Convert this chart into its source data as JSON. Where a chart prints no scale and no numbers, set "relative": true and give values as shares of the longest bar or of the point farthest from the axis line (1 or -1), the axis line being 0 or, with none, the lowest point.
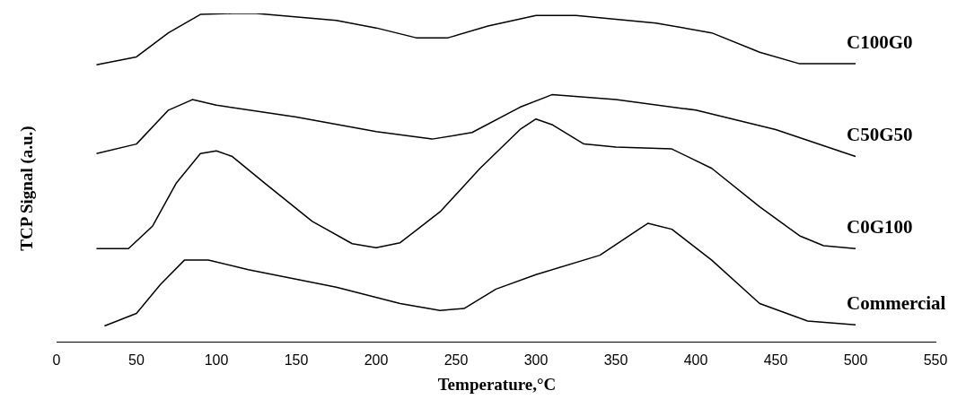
{
  "chart_data": {
    "type": "line",
    "relative": true,
    "xlabel": "Temperature,°C",
    "ylabel": "TCP Signal (a.u.)",
    "xlim": [
      0,
      550
    ],
    "xticks": [
      0,
      50,
      100,
      150,
      200,
      250,
      300,
      350,
      400,
      450,
      500,
      550
    ],
    "grid": false,
    "legend": false,
    "marker": "none",
    "line_style": "solid",
    "series": [
      {
        "name": "C100G0",
        "color": "#000000",
        "x": [
          25,
          50,
          70,
          90,
          110,
          125,
          175,
          200,
          225,
          245,
          270,
          300,
          325,
          375,
          410,
          440,
          465,
          500
        ],
        "values": [
          0.844,
          0.868,
          0.941,
          0.997,
          1.0,
          1.0,
          0.979,
          0.956,
          0.926,
          0.926,
          0.962,
          0.994,
          0.994,
          0.971,
          0.941,
          0.882,
          0.847,
          0.847
        ]
      },
      {
        "name": "C50G50",
        "color": "#000000",
        "x": [
          25,
          50,
          70,
          85,
          100,
          150,
          200,
          235,
          260,
          290,
          310,
          350,
          400,
          450,
          500
        ],
        "values": [
          0.574,
          0.603,
          0.706,
          0.738,
          0.721,
          0.685,
          0.641,
          0.618,
          0.638,
          0.715,
          0.753,
          0.738,
          0.706,
          0.647,
          0.565
        ]
      },
      {
        "name": "C0G100",
        "color": "#000000",
        "x": [
          25,
          45,
          60,
          75,
          90,
          100,
          110,
          130,
          160,
          185,
          200,
          215,
          240,
          265,
          290,
          300,
          310,
          330,
          350,
          385,
          410,
          440,
          465,
          480,
          500
        ],
        "values": [
          0.285,
          0.285,
          0.353,
          0.485,
          0.574,
          0.582,
          0.565,
          0.485,
          0.368,
          0.3,
          0.288,
          0.303,
          0.397,
          0.529,
          0.647,
          0.679,
          0.662,
          0.603,
          0.594,
          0.588,
          0.529,
          0.412,
          0.324,
          0.294,
          0.285
        ]
      },
      {
        "name": "Commercial",
        "color": "#000000",
        "x": [
          30,
          50,
          65,
          80,
          95,
          120,
          175,
          215,
          240,
          255,
          275,
          300,
          340,
          370,
          385,
          410,
          440,
          470,
          500
        ],
        "values": [
          0.05,
          0.088,
          0.176,
          0.25,
          0.25,
          0.221,
          0.168,
          0.118,
          0.097,
          0.103,
          0.162,
          0.206,
          0.265,
          0.362,
          0.344,
          0.25,
          0.118,
          0.065,
          0.053
        ]
      }
    ]
  }
}
